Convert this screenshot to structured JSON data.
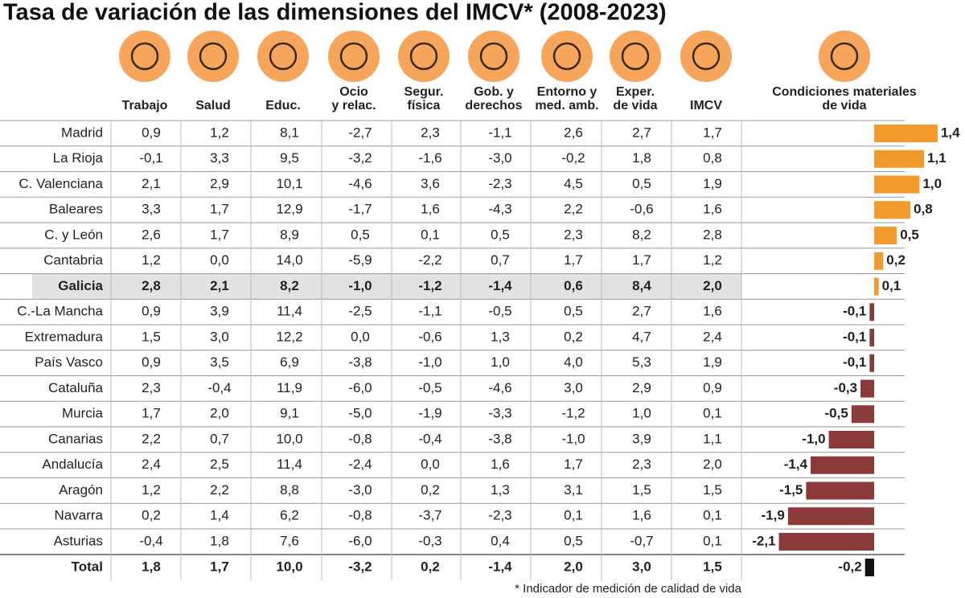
{
  "title": "Tasa de variación de las dimensiones del IMCV* (2008-2023)",
  "headers": [
    [
      "Trabajo"
    ],
    [
      "Salud"
    ],
    [
      "Educ."
    ],
    [
      "Ocio",
      "y relac."
    ],
    [
      "Segur.",
      "física"
    ],
    [
      "Gob. y",
      "derechos"
    ],
    [
      "Entorno y",
      "med. amb."
    ],
    [
      "Exper.",
      "de vida"
    ],
    [
      "IMCV"
    ],
    [
      "Condiciones materiales",
      "de vida"
    ]
  ],
  "rows": [
    {
      "region": "Madrid",
      "cells": [
        "0,9",
        "1,2",
        "8,1",
        "-2,7",
        "2,3",
        "-1,1",
        "2,6",
        "2,7",
        "1,7"
      ]
    },
    {
      "region": "La Rioja",
      "cells": [
        "-0,1",
        "3,3",
        "9,5",
        "-3,2",
        "-1,6",
        "-3,0",
        "-0,2",
        "1,8",
        "0,8"
      ]
    },
    {
      "region": "C. Valenciana",
      "cells": [
        "2,1",
        "2,9",
        "10,1",
        "-4,6",
        "3,6",
        "-2,3",
        "4,5",
        "0,5",
        "1,9"
      ]
    },
    {
      "region": "Baleares",
      "cells": [
        "3,3",
        "1,7",
        "12,9",
        "-1,7",
        "1,6",
        "-4,3",
        "2,2",
        "-0,6",
        "1,6"
      ]
    },
    {
      "region": "C. y León",
      "cells": [
        "2,6",
        "1,7",
        "8,9",
        "0,5",
        "0,1",
        "0,5",
        "2,3",
        "8,2",
        "2,8"
      ]
    },
    {
      "region": "Cantabria",
      "cells": [
        "1,2",
        "0,0",
        "14,0",
        "-5,9",
        "-2,2",
        "0,7",
        "1,7",
        "1,7",
        "1,2"
      ]
    },
    {
      "region": "Galicia",
      "cells": [
        "2,8",
        "2,1",
        "8,2",
        "-1,0",
        "-1,2",
        "-1,4",
        "0,6",
        "8,4",
        "2,0"
      ]
    },
    {
      "region": "C.-La Mancha",
      "cells": [
        "0,9",
        "3,9",
        "11,4",
        "-2,5",
        "-1,1",
        "-0,5",
        "0,5",
        "2,7",
        "1,6"
      ]
    },
    {
      "region": "Extremadura",
      "cells": [
        "1,5",
        "3,0",
        "12,2",
        "0,0",
        "-0,6",
        "1,3",
        "0,2",
        "4,7",
        "2,4"
      ]
    },
    {
      "region": "País Vasco",
      "cells": [
        "0,9",
        "3,5",
        "6,9",
        "-3,8",
        "-1,0",
        "1,0",
        "4,0",
        "5,3",
        "1,9"
      ]
    },
    {
      "region": "Cataluña",
      "cells": [
        "2,3",
        "-0,4",
        "11,9",
        "-6,0",
        "-0,5",
        "-4,6",
        "3,0",
        "2,9",
        "0,9"
      ]
    },
    {
      "region": "Murcia",
      "cells": [
        "1,7",
        "2,0",
        "9,1",
        "-5,0",
        "-1,9",
        "-3,3",
        "-1,2",
        "1,0",
        "0,1"
      ]
    },
    {
      "region": "Canarias",
      "cells": [
        "2,2",
        "0,7",
        "10,0",
        "-0,8",
        "-0,4",
        "-3,8",
        "-1,0",
        "3,9",
        "1,1"
      ]
    },
    {
      "region": "Andalucía",
      "cells": [
        "2,4",
        "2,5",
        "11,4",
        "-2,4",
        "0,0",
        "1,6",
        "1,7",
        "2,3",
        "2,0"
      ]
    },
    {
      "region": "Aragón",
      "cells": [
        "1,2",
        "2,2",
        "8,8",
        "-3,0",
        "0,2",
        "1,3",
        "3,1",
        "1,5",
        "1,5"
      ]
    },
    {
      "region": "Navarra",
      "cells": [
        "0,2",
        "1,4",
        "6,2",
        "-0,8",
        "-3,7",
        "-2,3",
        "0,1",
        "1,6",
        "0,1"
      ]
    },
    {
      "region": "Asturias",
      "cells": [
        "-0,4",
        "1,8",
        "7,6",
        "-6,0",
        "-0,3",
        "0,4",
        "0,5",
        "-0,7",
        "0,1"
      ]
    }
  ],
  "total": {
    "region": "Total",
    "cells": [
      "1,8",
      "1,7",
      "10,0",
      "-3,2",
      "0,2",
      "-1,4",
      "2,0",
      "3,0",
      "1,5"
    ]
  },
  "highlight_row": 6,
  "bars": {
    "values": [
      1.4,
      1.1,
      1.0,
      0.8,
      0.5,
      0.2,
      0.1,
      -0.1,
      -0.1,
      -0.1,
      -0.3,
      -0.5,
      -1.0,
      -1.4,
      -1.5,
      -1.9,
      -2.1,
      -0.2
    ],
    "value_labels": [
      "1,4",
      "1,1",
      "1,0",
      "0,8",
      "0,5",
      "0,2",
      "0,1",
      "-0,1",
      "-0,1",
      "-0,1",
      "-0,3",
      "-0,5",
      "-1,0",
      "-1,4",
      "-1,5",
      "-1,9",
      "-2,1",
      "-0,2"
    ],
    "positive_color": "#f39a2e",
    "negative_color": "#8b3a3a",
    "total_color": "#111111"
  },
  "footnote": "* Indicador de medición de calidad de vida"
}
